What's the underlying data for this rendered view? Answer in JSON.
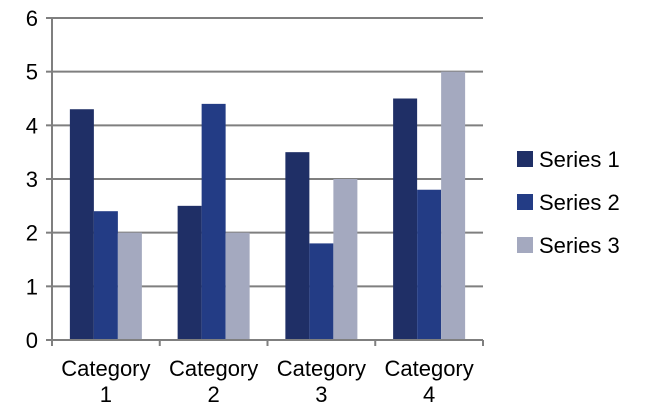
{
  "chart_data": {
    "type": "bar",
    "categories": [
      "Category 1",
      "Category 2",
      "Category 3",
      "Category 4"
    ],
    "series": [
      {
        "name": "Series 1",
        "values": [
          4.3,
          2.5,
          3.5,
          4.5
        ],
        "color": "#1f2f66"
      },
      {
        "name": "Series 2",
        "values": [
          2.4,
          4.4,
          1.8,
          2.8
        ],
        "color": "#233c85"
      },
      {
        "name": "Series 3",
        "values": [
          2.0,
          2.0,
          3.0,
          5.0
        ],
        "color": "#a4a9bf"
      }
    ],
    "title": "",
    "xlabel": "",
    "ylabel": "",
    "ylim": [
      0,
      6
    ],
    "yticks": [
      "0",
      "1",
      "2",
      "3",
      "4",
      "5",
      "6"
    ],
    "grid": true,
    "legend_position": "right",
    "colors": {
      "axis": "#7f7f7f",
      "grid": "#7f7f7f",
      "text": "#000000"
    }
  }
}
